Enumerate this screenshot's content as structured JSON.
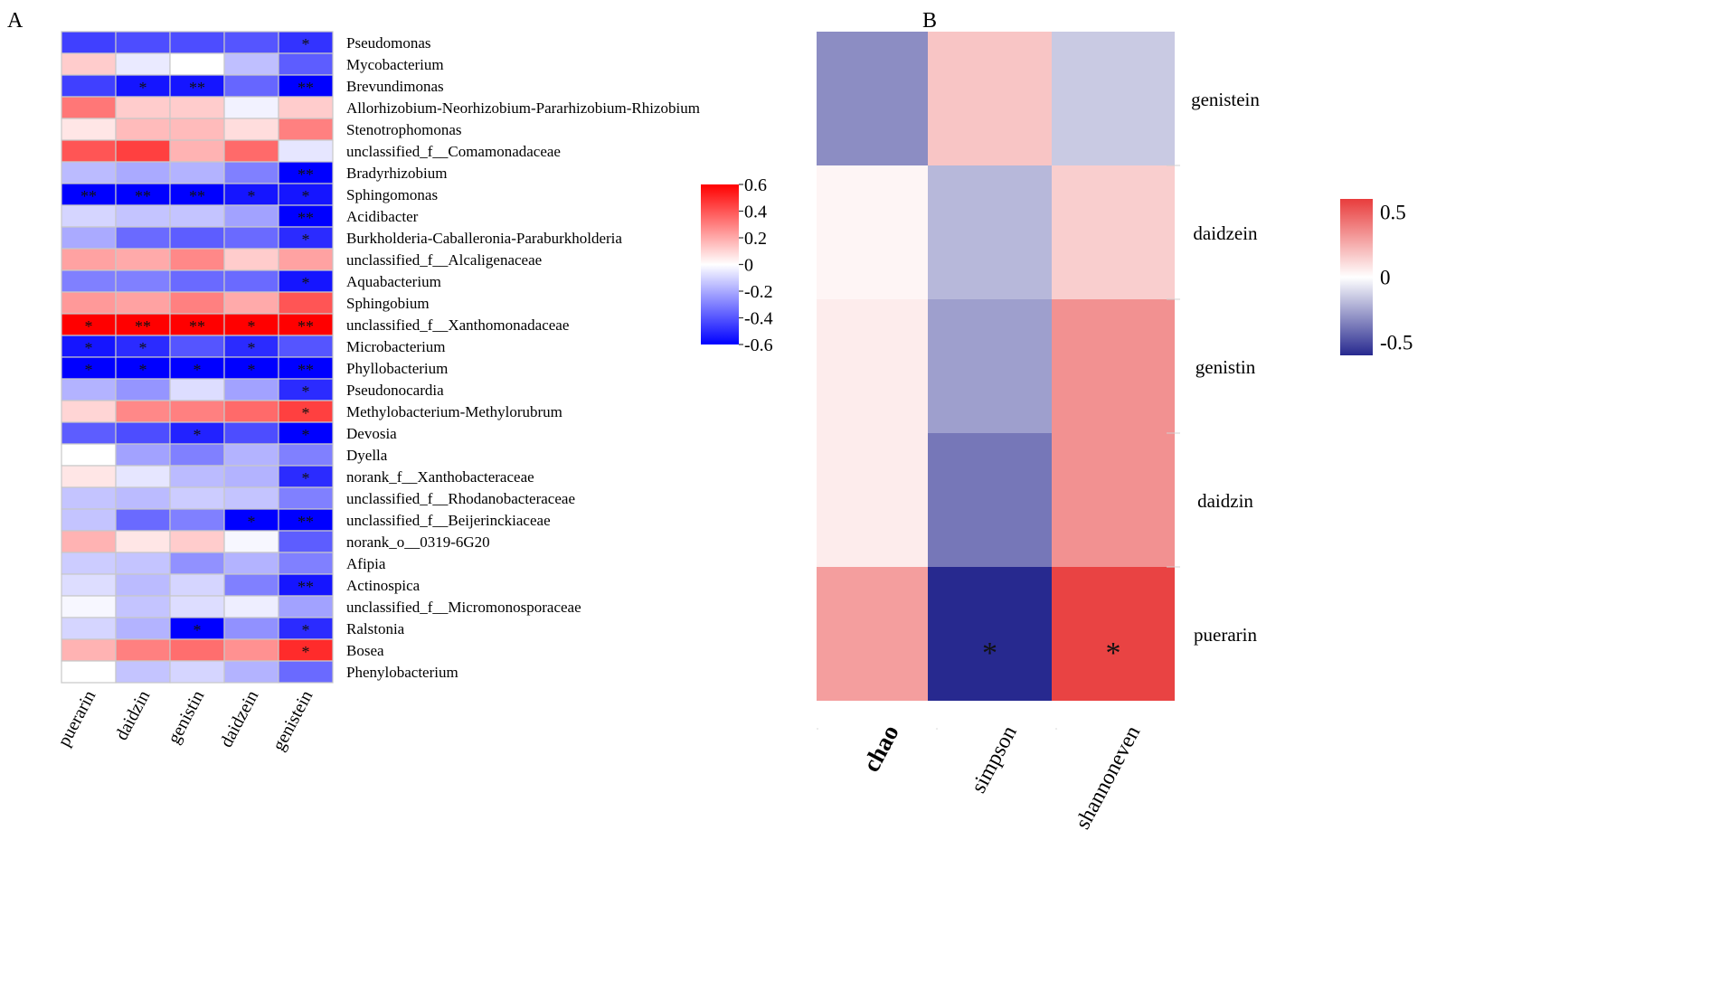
{
  "panels": {
    "a_label": "A",
    "b_label": "B"
  },
  "colors": {
    "neg": "#0000ff",
    "mid": "#ffffff",
    "pos": "#ff0000",
    "neg_b": "#27298f",
    "pos_b": "#e83c3c"
  },
  "chart_data": [
    {
      "type": "heatmap",
      "panel": "A",
      "title": "",
      "columns": [
        "puerarin",
        "daidzin",
        "genistin",
        "daidzein",
        "genistein"
      ],
      "rows": [
        "Pseudomonas",
        "Mycobacterium",
        "Brevundimonas",
        "Allorhizobium-Neorhizobium-Pararhizobium-Rhizobium",
        "Stenotrophomonas",
        "unclassified_f__Comamonadaceae",
        "Bradyrhizobium",
        "Sphingomonas",
        "Acidibacter",
        "Burkholderia-Caballeronia-Paraburkholderia",
        "unclassified_f__Alcaligenaceae",
        "Aquabacterium",
        "Sphingobium",
        "unclassified_f__Xanthomonadaceae",
        "Microbacterium",
        "Phyllobacterium",
        "Pseudonocardia",
        "Methylobacterium-Methylorubrum",
        "Devosia",
        "Dyella",
        "norank_f__Xanthobacteraceae",
        "unclassified_f__Rhodanobacteraceae",
        "unclassified_f__Beijerinckiaceae",
        "norank_o__0319-6G20",
        "Afipia",
        "Actinospica",
        "unclassified_f__Micromonosporaceae",
        "Ralstonia",
        "Bosea",
        "Phenylobacterium"
      ],
      "values": [
        [
          -0.45,
          -0.42,
          -0.42,
          -0.4,
          -0.48
        ],
        [
          0.12,
          -0.05,
          0.0,
          -0.15,
          -0.38
        ],
        [
          -0.45,
          -0.55,
          -0.55,
          -0.36,
          -0.6
        ],
        [
          0.32,
          0.12,
          0.12,
          -0.03,
          0.12
        ],
        [
          0.06,
          0.16,
          0.16,
          0.08,
          0.3
        ],
        [
          0.4,
          0.45,
          0.18,
          0.35,
          -0.06
        ],
        [
          -0.16,
          -0.2,
          -0.18,
          -0.3,
          -0.6
        ],
        [
          -0.6,
          -0.6,
          -0.6,
          -0.55,
          -0.55
        ],
        [
          -0.1,
          -0.14,
          -0.14,
          -0.22,
          -0.6
        ],
        [
          -0.2,
          -0.35,
          -0.38,
          -0.35,
          -0.5
        ],
        [
          0.22,
          0.2,
          0.28,
          0.12,
          0.22
        ],
        [
          -0.3,
          -0.3,
          -0.35,
          -0.35,
          -0.55
        ],
        [
          0.24,
          0.22,
          0.3,
          0.2,
          0.4
        ],
        [
          0.6,
          0.6,
          0.6,
          0.6,
          0.6
        ],
        [
          -0.55,
          -0.5,
          -0.4,
          -0.5,
          -0.4
        ],
        [
          -0.6,
          -0.6,
          -0.6,
          -0.6,
          -0.6
        ],
        [
          -0.18,
          -0.25,
          -0.08,
          -0.22,
          -0.5
        ],
        [
          0.1,
          0.28,
          0.3,
          0.35,
          0.45
        ],
        [
          -0.38,
          -0.42,
          -0.52,
          -0.42,
          -0.6
        ],
        [
          0.0,
          -0.22,
          -0.3,
          -0.18,
          -0.3
        ],
        [
          0.06,
          -0.06,
          -0.16,
          -0.18,
          -0.5
        ],
        [
          -0.14,
          -0.16,
          -0.12,
          -0.14,
          -0.3
        ],
        [
          -0.14,
          -0.35,
          -0.3,
          -0.6,
          -0.6
        ],
        [
          0.18,
          0.06,
          0.12,
          -0.02,
          -0.38
        ],
        [
          -0.12,
          -0.14,
          -0.26,
          -0.18,
          -0.3
        ],
        [
          -0.08,
          -0.16,
          -0.1,
          -0.3,
          -0.55
        ],
        [
          -0.02,
          -0.14,
          -0.08,
          -0.04,
          -0.22
        ],
        [
          -0.1,
          -0.18,
          -0.6,
          -0.26,
          -0.5
        ],
        [
          0.18,
          0.3,
          0.34,
          0.26,
          0.5
        ],
        [
          0.0,
          -0.14,
          -0.1,
          -0.18,
          -0.35
        ]
      ],
      "significance": [
        [
          "",
          "",
          "",
          "",
          "*"
        ],
        [
          "",
          "",
          "",
          "",
          ""
        ],
        [
          "",
          "*",
          "**",
          "",
          "**"
        ],
        [
          "",
          "",
          "",
          "",
          ""
        ],
        [
          "",
          "",
          "",
          "",
          ""
        ],
        [
          "",
          "",
          "",
          "",
          ""
        ],
        [
          "",
          "",
          "",
          "",
          "**"
        ],
        [
          "**",
          "**",
          "**",
          "*",
          "*"
        ],
        [
          "",
          "",
          "",
          "",
          "**"
        ],
        [
          "",
          "",
          "",
          "",
          "*"
        ],
        [
          "",
          "",
          "",
          "",
          ""
        ],
        [
          "",
          "",
          "",
          "",
          "*"
        ],
        [
          "",
          "",
          "",
          "",
          ""
        ],
        [
          "*",
          "**",
          "**",
          "*",
          "**"
        ],
        [
          "*",
          "*",
          "",
          "*",
          ""
        ],
        [
          "*",
          "*",
          "*",
          "*",
          "**"
        ],
        [
          "",
          "",
          "",
          "",
          "*"
        ],
        [
          "",
          "",
          "",
          "",
          "*"
        ],
        [
          "",
          "",
          "*",
          "",
          "*"
        ],
        [
          "",
          "",
          "",
          "",
          ""
        ],
        [
          "",
          "",
          "",
          "",
          "*"
        ],
        [
          "",
          "",
          "",
          "",
          ""
        ],
        [
          "",
          "",
          "",
          "*",
          "**"
        ],
        [
          "",
          "",
          "",
          "",
          ""
        ],
        [
          "",
          "",
          "",
          "",
          ""
        ],
        [
          "",
          "",
          "",
          "",
          "**"
        ],
        [
          "",
          "",
          "",
          "",
          ""
        ],
        [
          "",
          "",
          "*",
          "",
          "*"
        ],
        [
          "",
          "",
          "",
          "",
          "*"
        ],
        [
          "",
          "",
          "",
          "",
          ""
        ]
      ],
      "colorbar": {
        "min": -0.6,
        "max": 0.6,
        "ticks": [
          0.6,
          0.4,
          0.2,
          0,
          -0.2,
          -0.4,
          -0.6
        ],
        "labels": [
          "0.6",
          "0.4",
          "0.2",
          "0",
          "-0.2",
          "-0.4",
          "-0.6"
        ]
      }
    },
    {
      "type": "heatmap",
      "panel": "B",
      "title": "",
      "columns": [
        "chao",
        "simpson",
        "shannoneven"
      ],
      "rows": [
        "genistein",
        "daidzein",
        "genistin",
        "daidzin",
        "puerarin"
      ],
      "values": [
        [
          -0.32,
          0.18,
          -0.15
        ],
        [
          0.03,
          -0.2,
          0.15
        ],
        [
          0.06,
          -0.27,
          0.34
        ],
        [
          0.06,
          -0.38,
          0.34
        ],
        [
          0.3,
          -0.6,
          0.58
        ]
      ],
      "significance": [
        [
          "",
          "",
          ""
        ],
        [
          "",
          "",
          ""
        ],
        [
          "",
          "",
          ""
        ],
        [
          "",
          "",
          ""
        ],
        [
          "",
          "*",
          "*"
        ]
      ],
      "colorbar": {
        "min": -0.6,
        "max": 0.6,
        "ticks": [
          0.5,
          0,
          -0.5
        ],
        "labels": [
          "0.5",
          "0",
          "-0.5"
        ]
      }
    }
  ]
}
